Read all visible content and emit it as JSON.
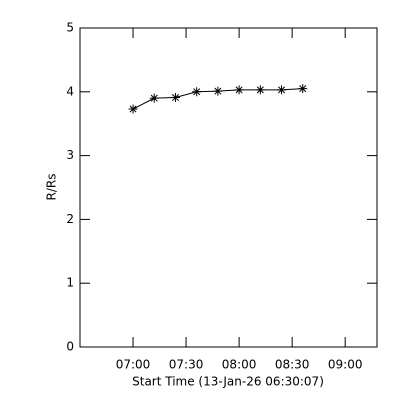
{
  "chart_data": {
    "type": "line",
    "xlabel": "Start Time (13-Jan-26 06:30:07)",
    "ylabel": "R/Rs",
    "x": [
      420,
      432,
      444,
      456,
      468,
      480,
      492,
      504,
      516
    ],
    "series": [
      {
        "color": "#000000",
        "values": [
          3.73,
          3.9,
          3.91,
          4.0,
          4.01,
          4.03,
          4.03,
          4.03,
          4.05
        ]
      }
    ],
    "xlim": [
      390,
      558
    ],
    "xticks": [
      {
        "value": 420,
        "label": "07:00"
      },
      {
        "value": 450,
        "label": "07:30"
      },
      {
        "value": 480,
        "label": "08:00"
      },
      {
        "value": 510,
        "label": "08:30"
      },
      {
        "value": 540,
        "label": "09:00"
      }
    ],
    "ylim": [
      0,
      5
    ],
    "yticks": [
      0,
      1,
      2,
      3,
      4,
      5
    ]
  }
}
